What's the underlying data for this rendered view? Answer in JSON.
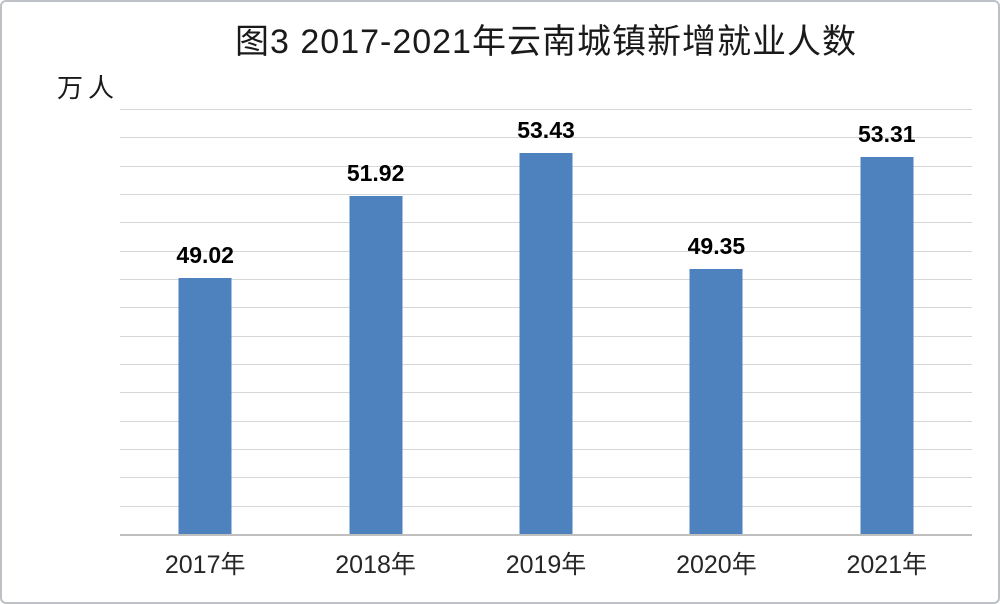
{
  "title": "图3 2017-2021年云南城镇新增就业人数",
  "unit_label": "万人",
  "colors": {
    "bar": "#4D82BE",
    "gridline": "#D7D7D7",
    "axis_line": "#BFBFBF",
    "value_label": "#000000",
    "tick_label": "#262626",
    "frame": "#BDC1C6"
  },
  "chart_data": {
    "type": "bar",
    "title": "图3 2017-2021年云南城镇新增就业人数",
    "categories": [
      "2017年",
      "2018年",
      "2019年",
      "2020年",
      "2021年"
    ],
    "values": [
      49.02,
      51.92,
      53.43,
      49.35,
      53.31
    ],
    "xlabel": "",
    "ylabel": "万人",
    "ylim": [
      40,
      55
    ],
    "grid_step": 1,
    "grid": true,
    "y_tick_labels_shown": false,
    "data_labels": true,
    "value_label_decimals": 2,
    "legend": false
  }
}
